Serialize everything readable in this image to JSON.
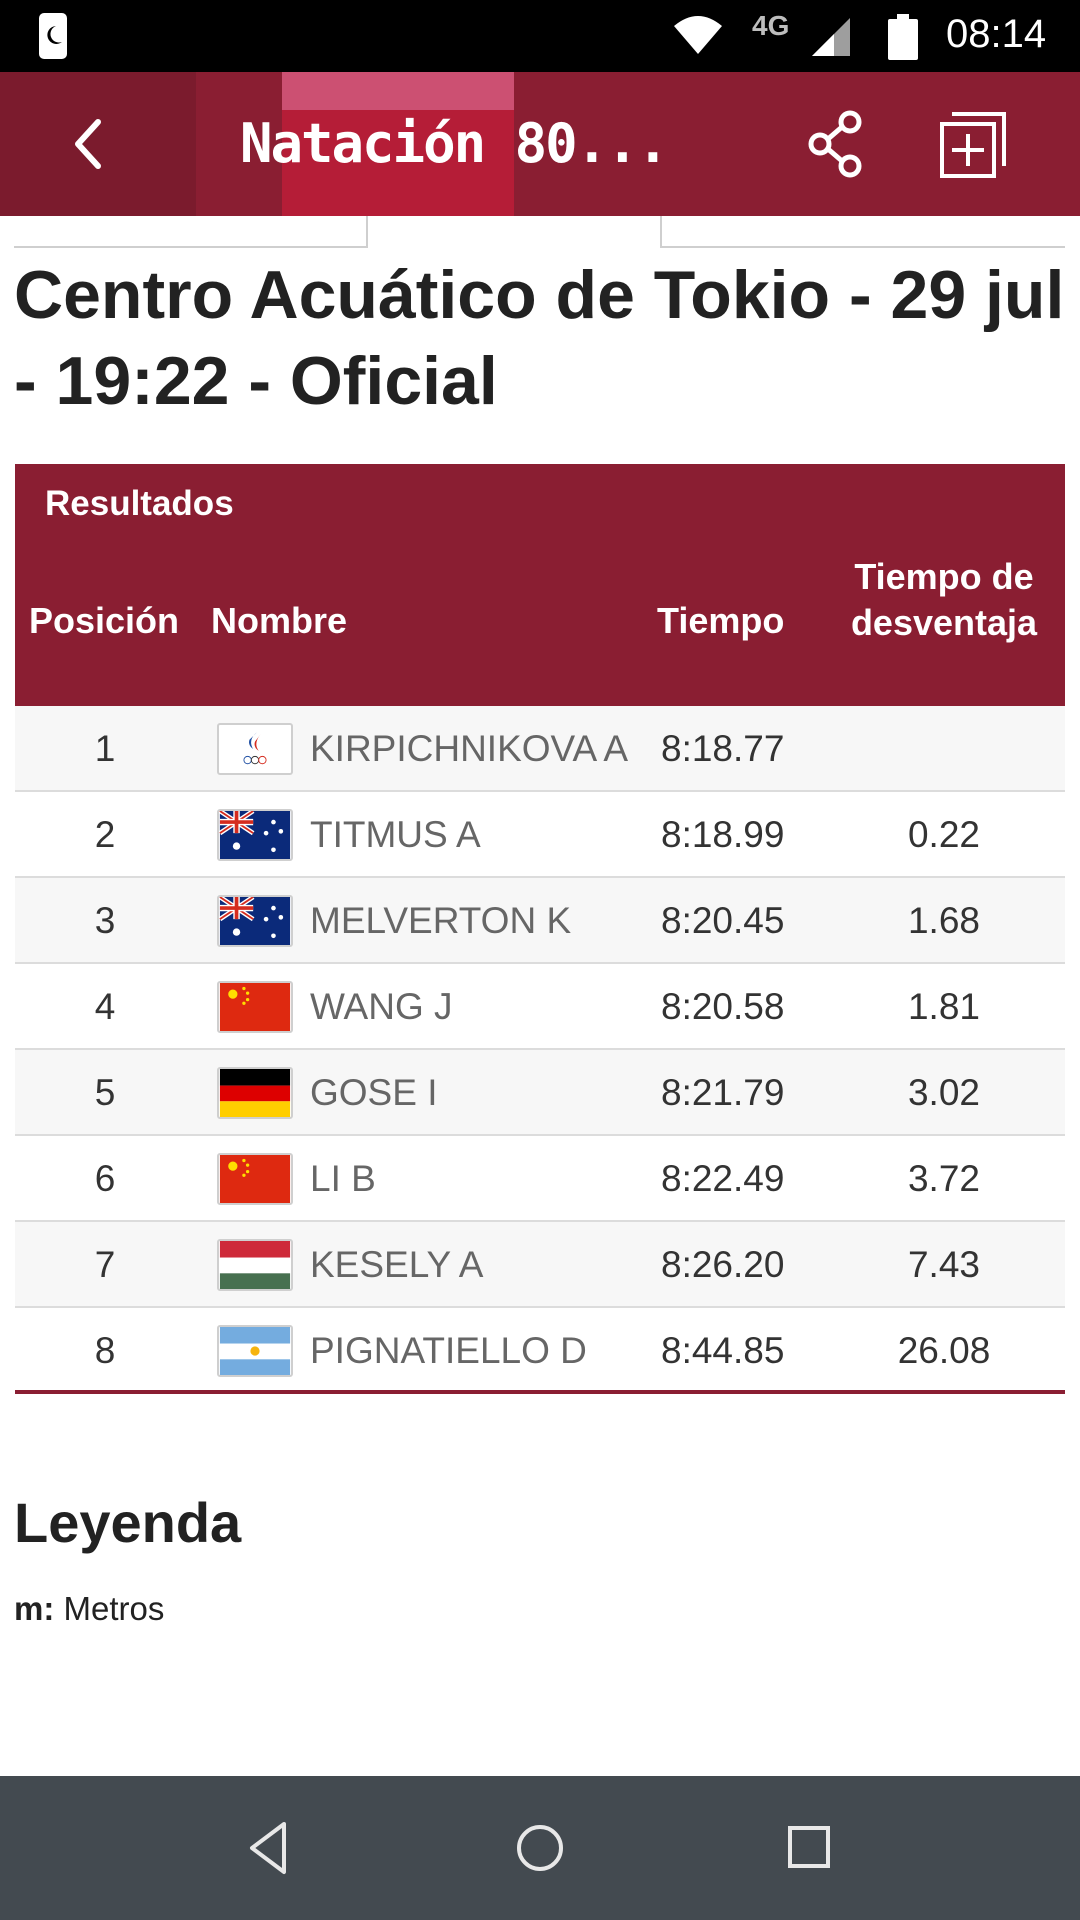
{
  "status_bar": {
    "time": "08:14",
    "network": "4G"
  },
  "app_bar": {
    "title": "Natación 80..."
  },
  "venue": {
    "title": "Centro Acuático de Tokio - 29 jul - 19:22 - Oficial"
  },
  "results": {
    "caption": "Resultados",
    "columns": {
      "position": "Posición",
      "name": "Nombre",
      "time": "Tiempo",
      "gap": "Tiempo de desventaja"
    },
    "rows": [
      {
        "position": "1",
        "flag": "roc-flag-icon",
        "name": "KIRPICHNIKOVA A",
        "time": "8:18.77",
        "gap": ""
      },
      {
        "position": "2",
        "flag": "australia-flag-icon",
        "name": "TITMUS A",
        "time": "8:18.99",
        "gap": "0.22"
      },
      {
        "position": "3",
        "flag": "australia-flag-icon",
        "name": "MELVERTON K",
        "time": "8:20.45",
        "gap": "1.68"
      },
      {
        "position": "4",
        "flag": "china-flag-icon",
        "name": "WANG J",
        "time": "8:20.58",
        "gap": "1.81"
      },
      {
        "position": "5",
        "flag": "germany-flag-icon",
        "name": "GOSE I",
        "time": "8:21.79",
        "gap": "3.02"
      },
      {
        "position": "6",
        "flag": "china-flag-icon",
        "name": "LI B",
        "time": "8:22.49",
        "gap": "3.72"
      },
      {
        "position": "7",
        "flag": "hungary-flag-icon",
        "name": "KESELY A",
        "time": "8:26.20",
        "gap": "7.43"
      },
      {
        "position": "8",
        "flag": "argentina-flag-icon",
        "name": "PIGNATIELLO D",
        "time": "8:44.85",
        "gap": "26.08"
      }
    ]
  },
  "legend": {
    "title": "Leyenda",
    "key": "m:",
    "value": "Metros"
  },
  "colors": {
    "brand": "#8a1e32",
    "highlight": "#b51d37"
  }
}
